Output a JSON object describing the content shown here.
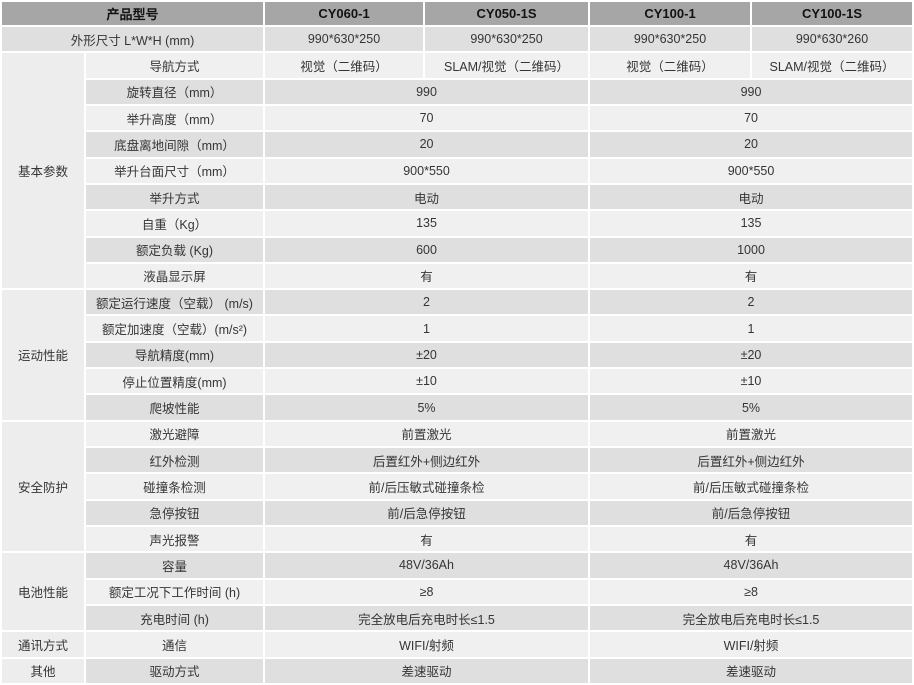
{
  "colors": {
    "header_bg": "#a6a6a6",
    "row_dark": "#dfdfdf",
    "row_light": "#f0f0f0",
    "section_bg": "#ededed",
    "gap": "#ffffff",
    "header_text": "#121212",
    "body_text": "#353535"
  },
  "header": {
    "label": "产品型号",
    "models": [
      "CY060-1",
      "CY050-1S",
      "CY100-1",
      "CY100-1S"
    ]
  },
  "rows": [
    {
      "label": "外形尺寸 L*W*H (mm)",
      "label_colspan": 2,
      "values": [
        "990*630*250",
        "990*630*250",
        "990*630*250",
        "990*630*260"
      ]
    },
    {
      "section": {
        "name": "基本参数",
        "span": 9
      },
      "label": "导航方式",
      "values": [
        "视觉（二维码）",
        "SLAM/视觉（二维码）",
        "视觉（二维码）",
        "SLAM/视觉（二维码）"
      ]
    },
    {
      "label": "旋转直径（mm）",
      "values": [
        "990",
        "990"
      ]
    },
    {
      "label": "举升高度（mm）",
      "values": [
        "70",
        "70"
      ]
    },
    {
      "label": "底盘离地间隙（mm）",
      "values": [
        "20",
        "20"
      ]
    },
    {
      "label": "举升台面尺寸（mm）",
      "values": [
        "900*550",
        "900*550"
      ]
    },
    {
      "label": "举升方式",
      "values": [
        "电动",
        "电动"
      ]
    },
    {
      "label": "自重（Kg）",
      "values": [
        "135",
        "135"
      ]
    },
    {
      "label": "额定负载 (Kg)",
      "values": [
        "600",
        "1000"
      ]
    },
    {
      "label": "液晶显示屏",
      "values": [
        "有",
        "有"
      ]
    },
    {
      "section": {
        "name": "运动性能",
        "span": 5
      },
      "label": "额定运行速度（空载） (m/s)",
      "values": [
        "2",
        "2"
      ]
    },
    {
      "label": "额定加速度（空载）(m/s²)",
      "values": [
        "1",
        "1"
      ]
    },
    {
      "label": "导航精度(mm)",
      "values": [
        "±20",
        "±20"
      ]
    },
    {
      "label": "停止位置精度(mm)",
      "values": [
        "±10",
        "±10"
      ]
    },
    {
      "label": "爬坡性能",
      "values": [
        "5%",
        "5%"
      ]
    },
    {
      "section": {
        "name": "安全防护",
        "span": 5
      },
      "label": "激光避障",
      "values": [
        "前置激光",
        "前置激光"
      ]
    },
    {
      "label": "红外检测",
      "values": [
        "后置红外+侧边红外",
        "后置红外+侧边红外"
      ]
    },
    {
      "label": "碰撞条检测",
      "values": [
        "前/后压敏式碰撞条检",
        "前/后压敏式碰撞条检"
      ]
    },
    {
      "label": "急停按钮",
      "values": [
        "前/后急停按钮",
        "前/后急停按钮"
      ]
    },
    {
      "label": "声光报警",
      "values": [
        "有",
        "有"
      ]
    },
    {
      "section": {
        "name": "电池性能",
        "span": 3
      },
      "label": "容量",
      "values": [
        "48V/36Ah",
        "48V/36Ah"
      ]
    },
    {
      "label": "额定工况下工作时间 (h)",
      "values": [
        "≥8",
        "≥8"
      ]
    },
    {
      "label": "充电时间 (h)",
      "values": [
        "完全放电后充电时长≤1.5",
        "完全放电后充电时长≤1.5"
      ]
    },
    {
      "section": {
        "name": "通讯方式",
        "span": 1
      },
      "label": "通信",
      "values": [
        "WIFI/射频",
        "WIFI/射频"
      ]
    },
    {
      "section": {
        "name": "其他",
        "span": 1
      },
      "label": "驱动方式",
      "values": [
        "差速驱动",
        "差速驱动"
      ]
    }
  ]
}
